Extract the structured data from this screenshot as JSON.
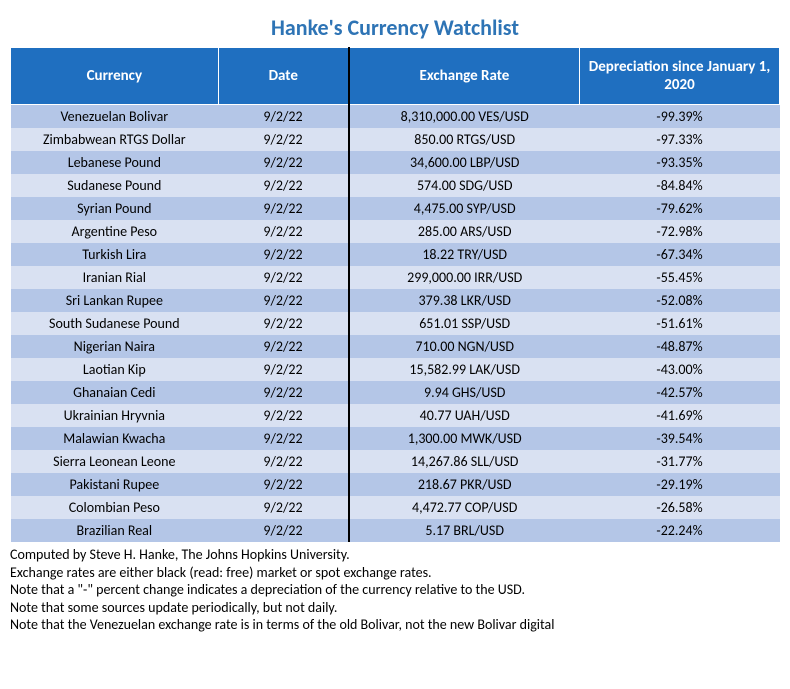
{
  "title": "Hanke's Currency Watchlist",
  "title_color": "#2e74b5",
  "title_fontsize": 22,
  "header_bg": "#1f6fc0",
  "header_fontsize": 15,
  "row_fontsize": 14,
  "notes_fontsize": 14,
  "row_colors": {
    "even": "#b4c6e7",
    "odd": "#d9e1f2"
  },
  "columns": [
    {
      "label": "Currency",
      "width": "27%"
    },
    {
      "label": "Date",
      "width": "17%"
    },
    {
      "label": "Exchange Rate",
      "width": "30%"
    },
    {
      "label": "Depreciation since January 1, 2020",
      "width": "26%"
    }
  ],
  "rows": [
    {
      "currency": "Venezuelan Bolivar",
      "date": "9/2/22",
      "rate": "8,310,000.00 VES/USD",
      "deprec": "-99.39%"
    },
    {
      "currency": "Zimbabwean RTGS Dollar",
      "date": "9/2/22",
      "rate": "850.00 RTGS/USD",
      "deprec": "-97.33%"
    },
    {
      "currency": "Lebanese Pound",
      "date": "9/2/22",
      "rate": "34,600.00 LBP/USD",
      "deprec": "-93.35%"
    },
    {
      "currency": "Sudanese Pound",
      "date": "9/2/22",
      "rate": "574.00 SDG/USD",
      "deprec": "-84.84%"
    },
    {
      "currency": "Syrian Pound",
      "date": "9/2/22",
      "rate": "4,475.00 SYP/USD",
      "deprec": "-79.62%"
    },
    {
      "currency": "Argentine Peso",
      "date": "9/2/22",
      "rate": "285.00 ARS/USD",
      "deprec": "-72.98%"
    },
    {
      "currency": "Turkish Lira",
      "date": "9/2/22",
      "rate": "18.22 TRY/USD",
      "deprec": "-67.34%"
    },
    {
      "currency": "Iranian Rial",
      "date": "9/2/22",
      "rate": "299,000.00 IRR/USD",
      "deprec": "-55.45%"
    },
    {
      "currency": "Sri Lankan Rupee",
      "date": "9/2/22",
      "rate": "379.38 LKR/USD",
      "deprec": "-52.08%"
    },
    {
      "currency": "South Sudanese Pound",
      "date": "9/2/22",
      "rate": "651.01 SSP/USD",
      "deprec": "-51.61%"
    },
    {
      "currency": "Nigerian Naira",
      "date": "9/2/22",
      "rate": "710.00 NGN/USD",
      "deprec": "-48.87%"
    },
    {
      "currency": "Laotian Kip",
      "date": "9/2/22",
      "rate": "15,582.99 LAK/USD",
      "deprec": "-43.00%"
    },
    {
      "currency": "Ghanaian Cedi",
      "date": "9/2/22",
      "rate": "9.94 GHS/USD",
      "deprec": "-42.57%"
    },
    {
      "currency": "Ukrainian Hryvnia",
      "date": "9/2/22",
      "rate": "40.77 UAH/USD",
      "deprec": "-41.69%"
    },
    {
      "currency": "Malawian Kwacha",
      "date": "9/2/22",
      "rate": "1,300.00 MWK/USD",
      "deprec": "-39.54%"
    },
    {
      "currency": "Sierra Leonean Leone",
      "date": "9/2/22",
      "rate": "14,267.86 SLL/USD",
      "deprec": "-31.77%"
    },
    {
      "currency": "Pakistani Rupee",
      "date": "9/2/22",
      "rate": "218.67 PKR/USD",
      "deprec": "-29.19%"
    },
    {
      "currency": "Colombian Peso",
      "date": "9/2/22",
      "rate": "4,472.77 COP/USD",
      "deprec": "-26.58%"
    },
    {
      "currency": "Brazilian Real",
      "date": "9/2/22",
      "rate": "5.17 BRL/USD",
      "deprec": "-22.24%"
    }
  ],
  "notes": [
    "Computed by Steve H. Hanke, The Johns Hopkins University.",
    "Exchange rates are either black (read: free) market or spot exchange rates.",
    "Note that a \"-\" percent change indicates a depreciation of the currency relative to the USD.",
    "Note that some sources update periodically, but not daily.",
    "Note that the Venezuelan exchange rate is in terms of the old Bolivar, not the new Bolivar digital"
  ]
}
